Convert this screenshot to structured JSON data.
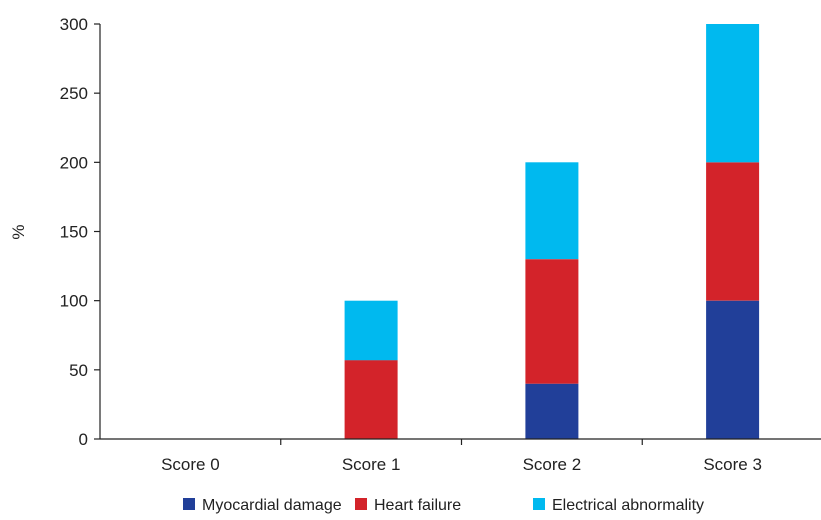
{
  "chart_data": {
    "type": "bar",
    "stacked": true,
    "categories": [
      "Score 0",
      "Score 1",
      "Score 2",
      "Score 3"
    ],
    "series": [
      {
        "name": "Myocardial damage",
        "color": "#213f99",
        "values": [
          0,
          0,
          40,
          100
        ]
      },
      {
        "name": "Heart failure",
        "color": "#d3232a",
        "values": [
          0,
          57,
          90,
          100
        ]
      },
      {
        "name": "Electrical abnormality",
        "color": "#00b9ef",
        "values": [
          0,
          43,
          70,
          100
        ]
      }
    ],
    "ylabel": "%",
    "ylim": [
      0,
      300
    ],
    "yticks": [
      0,
      50,
      100,
      150,
      200,
      250,
      300
    ],
    "grid": false,
    "legend_position": "bottom"
  }
}
